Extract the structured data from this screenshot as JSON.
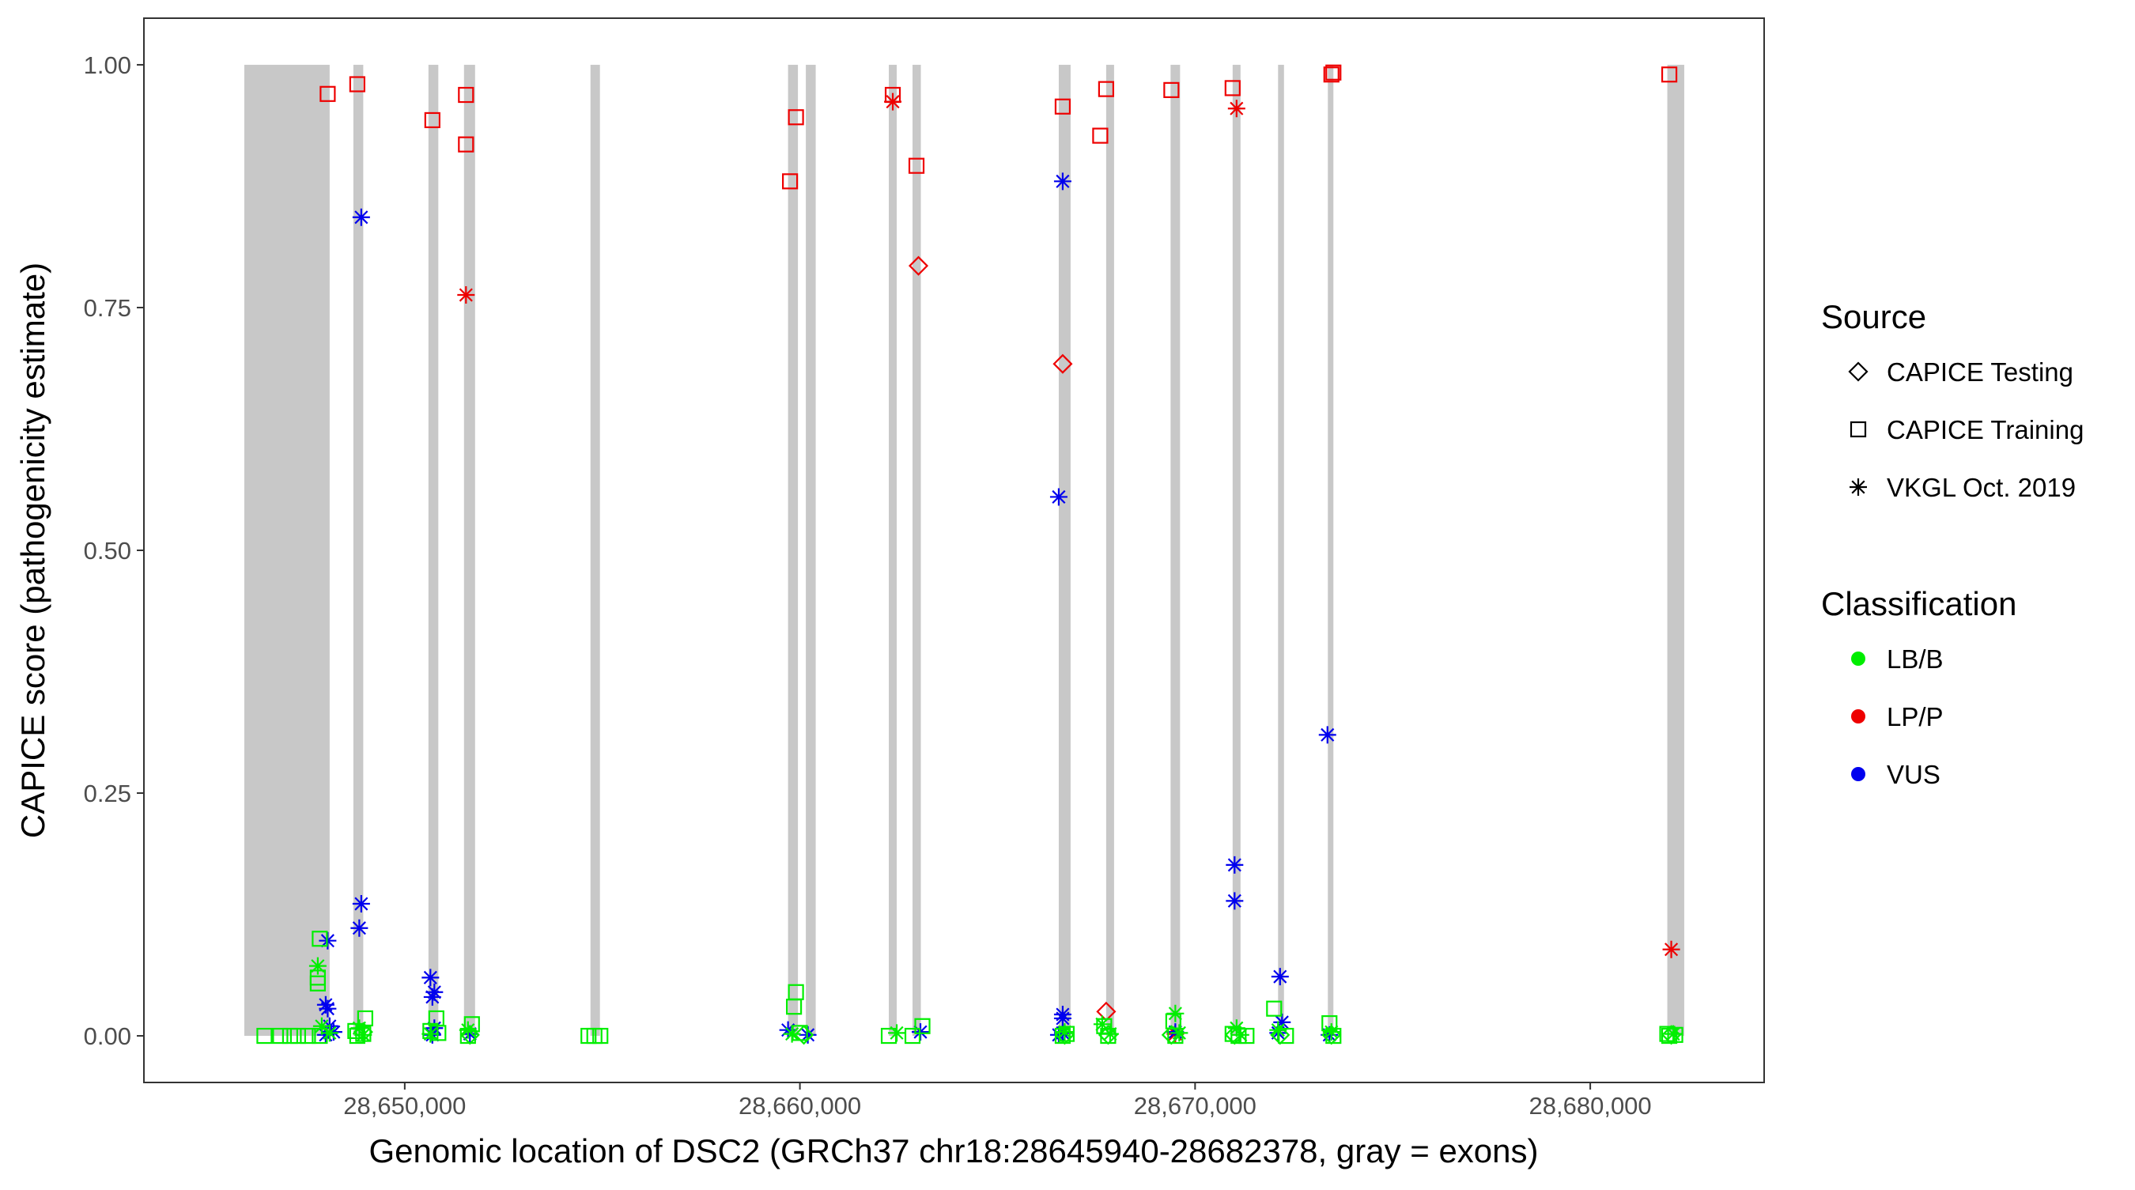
{
  "chart_data": {
    "type": "scatter",
    "xlabel": "Genomic location of DSC2 (GRCh37 chr18:28645940-28682378, gray = exons)",
    "ylabel": "CAPICE score (pathogenicity estimate)",
    "xlim": [
      28643400,
      28684400
    ],
    "ylim": [
      -0.048,
      1.048
    ],
    "x_ticks": [
      28650000,
      28660000,
      28670000,
      28680000
    ],
    "x_tick_labels": [
      "28,650,000",
      "28,660,000",
      "28,670,000",
      "28,680,000"
    ],
    "y_ticks": [
      0.0,
      0.25,
      0.5,
      0.75,
      1.0
    ],
    "y_tick_labels": [
      "0.00",
      "0.25",
      "0.50",
      "0.75",
      "1.00"
    ],
    "grid": false,
    "exon_color": "#c8c8c8",
    "exons": [
      [
        28645940,
        28648100
      ],
      [
        28648700,
        28648950
      ],
      [
        28650600,
        28650850
      ],
      [
        28651500,
        28651780
      ],
      [
        28654700,
        28654940
      ],
      [
        28659700,
        28659950
      ],
      [
        28660150,
        28660400
      ],
      [
        28662250,
        28662450
      ],
      [
        28662850,
        28663060
      ],
      [
        28666550,
        28666850
      ],
      [
        28667750,
        28667950
      ],
      [
        28669380,
        28669620
      ],
      [
        28670950,
        28671150
      ],
      [
        28672100,
        28672250
      ],
      [
        28673360,
        28673500
      ],
      [
        28681950,
        28682378
      ]
    ],
    "legend": {
      "placement": "right",
      "source_title": "Source",
      "source_items": [
        {
          "label": "CAPICE Testing",
          "shape": "diamond"
        },
        {
          "label": "CAPICE Training",
          "shape": "square"
        },
        {
          "label": "VKGL Oct. 2019",
          "shape": "asterisk"
        }
      ],
      "class_title": "Classification",
      "class_items": [
        {
          "label": "LB/B",
          "color": "#00ee00"
        },
        {
          "label": "LP/P",
          "color": "#ee0000"
        },
        {
          "label": "VUS",
          "color": "#0000ee"
        }
      ]
    },
    "series": [
      {
        "source": "CAPICE Training",
        "classification": "LP/P",
        "points": [
          [
            28648050,
            0.97
          ],
          [
            28648800,
            0.98
          ],
          [
            28650700,
            0.943
          ],
          [
            28651550,
            0.969
          ],
          [
            28651550,
            0.918
          ],
          [
            28659750,
            0.88
          ],
          [
            28659900,
            0.946
          ],
          [
            28662350,
            0.969
          ],
          [
            28662950,
            0.896
          ],
          [
            28666650,
            0.957
          ],
          [
            28667750,
            0.975
          ],
          [
            28667600,
            0.927
          ],
          [
            28669400,
            0.974
          ],
          [
            28670950,
            0.976
          ],
          [
            28673450,
            0.99
          ],
          [
            28673500,
            0.992
          ],
          [
            28682000,
            0.99
          ]
        ]
      },
      {
        "source": "VKGL Oct. 2019",
        "classification": "LP/P",
        "points": [
          [
            28651550,
            0.763
          ],
          [
            28662350,
            0.962
          ],
          [
            28671050,
            0.955
          ],
          [
            28682050,
            0.089
          ],
          [
            28669500,
            0.002
          ]
        ]
      },
      {
        "source": "CAPICE Testing",
        "classification": "LP/P",
        "points": [
          [
            28663000,
            0.793
          ],
          [
            28666650,
            0.692
          ],
          [
            28667750,
            0.025
          ]
        ]
      },
      {
        "source": "VKGL Oct. 2019",
        "classification": "VUS",
        "points": [
          [
            28648900,
            0.843
          ],
          [
            28648900,
            0.136
          ],
          [
            28648850,
            0.111
          ],
          [
            28648050,
            0.098
          ],
          [
            28648000,
            0.032
          ],
          [
            28648050,
            0.028
          ],
          [
            28648100,
            0.01
          ],
          [
            28648200,
            0.004
          ],
          [
            28648000,
            0.001
          ],
          [
            28650650,
            0.06
          ],
          [
            28650750,
            0.045
          ],
          [
            28650700,
            0.04
          ],
          [
            28650750,
            0.008
          ],
          [
            28650700,
            0.001
          ],
          [
            28651650,
            0.002
          ],
          [
            28659700,
            0.006
          ],
          [
            28660200,
            0.001
          ],
          [
            28663050,
            0.004
          ],
          [
            28666650,
            0.88
          ],
          [
            28666550,
            0.555
          ],
          [
            28666650,
            0.022
          ],
          [
            28666650,
            0.018
          ],
          [
            28666650,
            0.003
          ],
          [
            28666550,
            0.001
          ],
          [
            28671000,
            0.176
          ],
          [
            28671000,
            0.139
          ],
          [
            28672150,
            0.061
          ],
          [
            28672200,
            0.014
          ],
          [
            28672100,
            0.003
          ],
          [
            28673350,
            0.31
          ],
          [
            28673400,
            0.001
          ],
          [
            28669500,
            0.004
          ]
        ]
      },
      {
        "source": "CAPICE Training",
        "classification": "LB/B",
        "points": [
          [
            28646450,
            0.0
          ],
          [
            28646850,
            0.0
          ],
          [
            28647100,
            0.0
          ],
          [
            28647300,
            0.0
          ],
          [
            28647550,
            0.0
          ],
          [
            28647850,
            0.0
          ],
          [
            28647800,
            0.06
          ],
          [
            28647850,
            0.1
          ],
          [
            28647800,
            0.054
          ],
          [
            28649000,
            0.018
          ],
          [
            28648750,
            0.005
          ],
          [
            28648950,
            0.002
          ],
          [
            28648800,
            0.0
          ],
          [
            28650650,
            0.005
          ],
          [
            28650800,
            0.018
          ],
          [
            28650850,
            0.003
          ],
          [
            28651700,
            0.012
          ],
          [
            28651600,
            0.0
          ],
          [
            28654650,
            0.0
          ],
          [
            28654800,
            0.0
          ],
          [
            28654950,
            0.0
          ],
          [
            28659900,
            0.045
          ],
          [
            28659850,
            0.03
          ],
          [
            28660000,
            0.003
          ],
          [
            28662250,
            0.0
          ],
          [
            28662850,
            0.0
          ],
          [
            28663100,
            0.01
          ],
          [
            28666750,
            0.002
          ],
          [
            28666650,
            0.0
          ],
          [
            28667700,
            0.01
          ],
          [
            28667800,
            0.0
          ],
          [
            28669450,
            0.015
          ],
          [
            28669500,
            0.0
          ],
          [
            28670950,
            0.002
          ],
          [
            28671100,
            0.0
          ],
          [
            28671300,
            0.0
          ],
          [
            28672000,
            0.028
          ],
          [
            28672300,
            0.0
          ],
          [
            28673400,
            0.013
          ],
          [
            28673500,
            0.0
          ],
          [
            28681950,
            0.002
          ],
          [
            28682000,
            0.0
          ],
          [
            28682150,
            0.001
          ]
        ]
      },
      {
        "source": "VKGL Oct. 2019",
        "classification": "LB/B",
        "points": [
          [
            28647800,
            0.072
          ],
          [
            28647900,
            0.01
          ],
          [
            28648100,
            0.003
          ],
          [
            28648850,
            0.008
          ],
          [
            28648950,
            0.001
          ],
          [
            28650650,
            0.002
          ],
          [
            28651600,
            0.006
          ],
          [
            28659800,
            0.002
          ],
          [
            28662450,
            0.003
          ],
          [
            28666700,
            0.004
          ],
          [
            28667650,
            0.012
          ],
          [
            28667850,
            0.002
          ],
          [
            28669500,
            0.023
          ],
          [
            28669600,
            0.003
          ],
          [
            28671050,
            0.008
          ],
          [
            28671150,
            0.001
          ],
          [
            28672100,
            0.006
          ],
          [
            28673450,
            0.004
          ],
          [
            28682100,
            0.002
          ]
        ]
      },
      {
        "source": "CAPICE Testing",
        "classification": "LB/B",
        "points": [
          [
            28648950,
            0.004
          ],
          [
            28651650,
            0.001
          ],
          [
            28660100,
            0.001
          ],
          [
            28666700,
            0.001
          ],
          [
            28667800,
            0.001
          ],
          [
            28669400,
            0.001
          ],
          [
            28671000,
            0.001
          ],
          [
            28672150,
            0.001
          ],
          [
            28673450,
            0.001
          ],
          [
            28682050,
            0.001
          ]
        ]
      }
    ]
  }
}
